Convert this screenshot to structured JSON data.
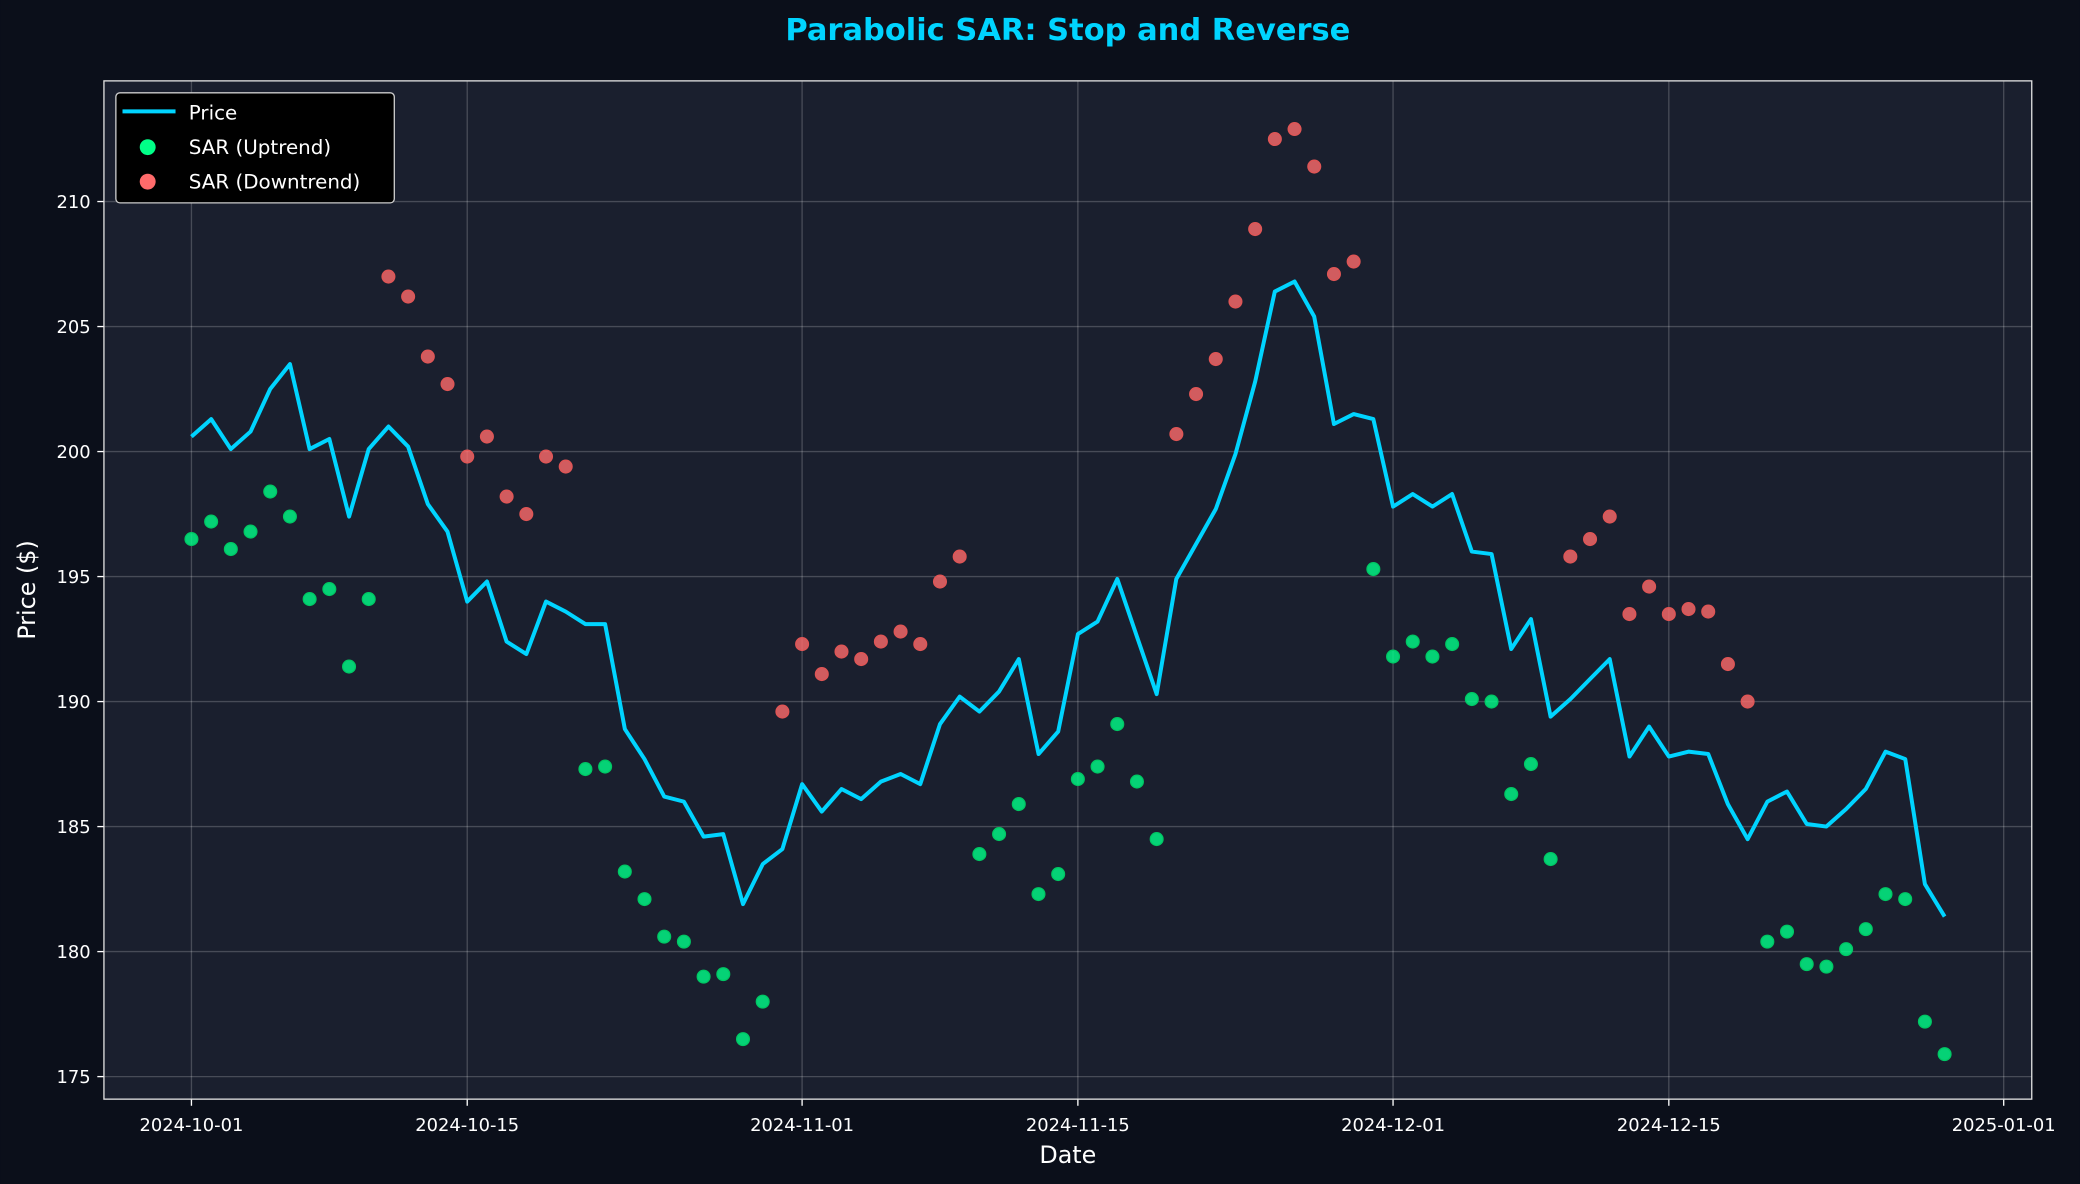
{
  "chart_data": {
    "type": "line",
    "title": "Parabolic SAR: Stop and Reverse",
    "xlabel": "Date",
    "ylabel": "Price ($)",
    "xlim": [
      "2024-09-26",
      "2025-01-03"
    ],
    "ylim": [
      174.1,
      214.8
    ],
    "x_ticks": [
      "2024-10-01",
      "2024-10-15",
      "2024-11-01",
      "2024-11-15",
      "2024-12-01",
      "2024-12-15",
      "2025-01-01"
    ],
    "y_ticks": [
      175,
      180,
      185,
      190,
      195,
      200,
      205,
      210
    ],
    "grid": true,
    "legend_position": "top-left",
    "legend": [
      "Price",
      "SAR (Uptrend)",
      "SAR (Downtrend)"
    ],
    "colors": {
      "background": "#0b0f1a",
      "axes": "#1a1f2e",
      "price": "#00d4ff",
      "uptrend": "#00e676",
      "downtrend": "#ff6b6b",
      "title": "#00d4ff"
    },
    "dates": [
      "2024-10-01",
      "2024-10-02",
      "2024-10-03",
      "2024-10-04",
      "2024-10-05",
      "2024-10-06",
      "2024-10-07",
      "2024-10-08",
      "2024-10-09",
      "2024-10-10",
      "2024-10-11",
      "2024-10-12",
      "2024-10-13",
      "2024-10-14",
      "2024-10-15",
      "2024-10-16",
      "2024-10-17",
      "2024-10-18",
      "2024-10-19",
      "2024-10-20",
      "2024-10-21",
      "2024-10-22",
      "2024-10-23",
      "2024-10-24",
      "2024-10-25",
      "2024-10-26",
      "2024-10-27",
      "2024-10-28",
      "2024-10-29",
      "2024-10-30",
      "2024-10-31",
      "2024-11-01",
      "2024-11-02",
      "2024-11-03",
      "2024-11-04",
      "2024-11-05",
      "2024-11-06",
      "2024-11-07",
      "2024-11-08",
      "2024-11-09",
      "2024-11-10",
      "2024-11-11",
      "2024-11-12",
      "2024-11-13",
      "2024-11-14",
      "2024-11-15",
      "2024-11-16",
      "2024-11-17",
      "2024-11-18",
      "2024-11-19",
      "2024-11-20",
      "2024-11-21",
      "2024-11-22",
      "2024-11-23",
      "2024-11-24",
      "2024-11-25",
      "2024-11-26",
      "2024-11-27",
      "2024-11-28",
      "2024-11-29",
      "2024-11-30",
      "2024-12-01",
      "2024-12-02",
      "2024-12-03",
      "2024-12-04",
      "2024-12-05",
      "2024-12-06",
      "2024-12-07",
      "2024-12-08",
      "2024-12-09",
      "2024-12-10",
      "2024-12-11",
      "2024-12-12",
      "2024-12-13",
      "2024-12-14",
      "2024-12-15",
      "2024-12-16",
      "2024-12-17",
      "2024-12-18",
      "2024-12-19",
      "2024-12-20",
      "2024-12-21",
      "2024-12-22",
      "2024-12-23",
      "2024-12-24",
      "2024-12-25",
      "2024-12-26",
      "2024-12-27",
      "2024-12-28",
      "2024-12-29"
    ],
    "series": [
      {
        "name": "Price",
        "values": [
          200.6,
          201.3,
          200.1,
          200.8,
          202.5,
          203.5,
          200.1,
          200.5,
          197.4,
          200.1,
          201.0,
          200.2,
          197.9,
          196.8,
          194.0,
          194.8,
          192.4,
          191.9,
          194.0,
          193.6,
          193.1,
          193.1,
          188.9,
          187.7,
          186.2,
          186.0,
          184.6,
          184.7,
          181.9,
          183.5,
          184.1,
          186.7,
          185.6,
          186.5,
          186.1,
          186.8,
          187.1,
          186.7,
          189.1,
          190.2,
          189.6,
          190.4,
          191.7,
          187.9,
          188.8,
          192.7,
          193.2,
          194.9,
          192.6,
          190.3,
          194.9,
          196.3,
          197.7,
          199.9,
          202.8,
          206.4,
          206.8,
          205.4,
          201.1,
          201.5,
          201.3,
          197.8,
          198.3,
          197.8,
          198.3,
          196.0,
          195.9,
          192.1,
          193.3,
          189.4,
          190.1,
          190.9,
          191.7,
          187.8,
          189.0,
          187.8,
          188.0,
          187.9,
          185.9,
          184.5,
          186.0,
          186.4,
          185.1,
          185.0,
          185.7,
          186.5,
          188.0,
          187.7,
          182.7,
          181.4
        ]
      },
      {
        "name": "SAR",
        "values": [
          196.5,
          197.2,
          196.1,
          196.8,
          198.4,
          197.4,
          194.1,
          194.5,
          191.4,
          194.1,
          207.0,
          206.2,
          203.8,
          202.7,
          199.8,
          200.6,
          198.2,
          197.5,
          199.8,
          199.4,
          187.3,
          187.4,
          183.2,
          182.1,
          180.6,
          180.4,
          179.0,
          179.1,
          176.5,
          178.0,
          189.6,
          192.3,
          191.1,
          192.0,
          191.7,
          192.4,
          192.8,
          192.3,
          194.8,
          195.8,
          183.9,
          184.7,
          185.9,
          182.3,
          183.1,
          186.9,
          187.4,
          189.1,
          186.8,
          184.5,
          200.7,
          202.3,
          203.7,
          206.0,
          208.9,
          212.5,
          212.9,
          211.4,
          207.1,
          207.6,
          195.3,
          191.8,
          192.4,
          191.8,
          192.3,
          190.1,
          190.0,
          186.3,
          187.5,
          183.7,
          195.8,
          196.5,
          197.4,
          193.5,
          194.6,
          193.5,
          193.7,
          193.6,
          191.5,
          190.0,
          180.4,
          180.8,
          179.5,
          179.4,
          180.1,
          180.9,
          182.3,
          182.1,
          177.2,
          175.9
        ],
        "trend": [
          "up",
          "up",
          "up",
          "up",
          "up",
          "up",
          "up",
          "up",
          "up",
          "up",
          "down",
          "down",
          "down",
          "down",
          "down",
          "down",
          "down",
          "down",
          "down",
          "down",
          "up",
          "up",
          "up",
          "up",
          "up",
          "up",
          "up",
          "up",
          "up",
          "up",
          "down",
          "down",
          "down",
          "down",
          "down",
          "down",
          "down",
          "down",
          "down",
          "down",
          "up",
          "up",
          "up",
          "up",
          "up",
          "up",
          "up",
          "up",
          "up",
          "up",
          "down",
          "down",
          "down",
          "down",
          "down",
          "down",
          "down",
          "down",
          "down",
          "down",
          "up",
          "up",
          "up",
          "up",
          "up",
          "up",
          "up",
          "up",
          "up",
          "up",
          "down",
          "down",
          "down",
          "down",
          "down",
          "down",
          "down",
          "down",
          "down",
          "down",
          "up",
          "up",
          "up",
          "up",
          "up",
          "up",
          "up",
          "up",
          "up",
          "up"
        ]
      }
    ]
  }
}
